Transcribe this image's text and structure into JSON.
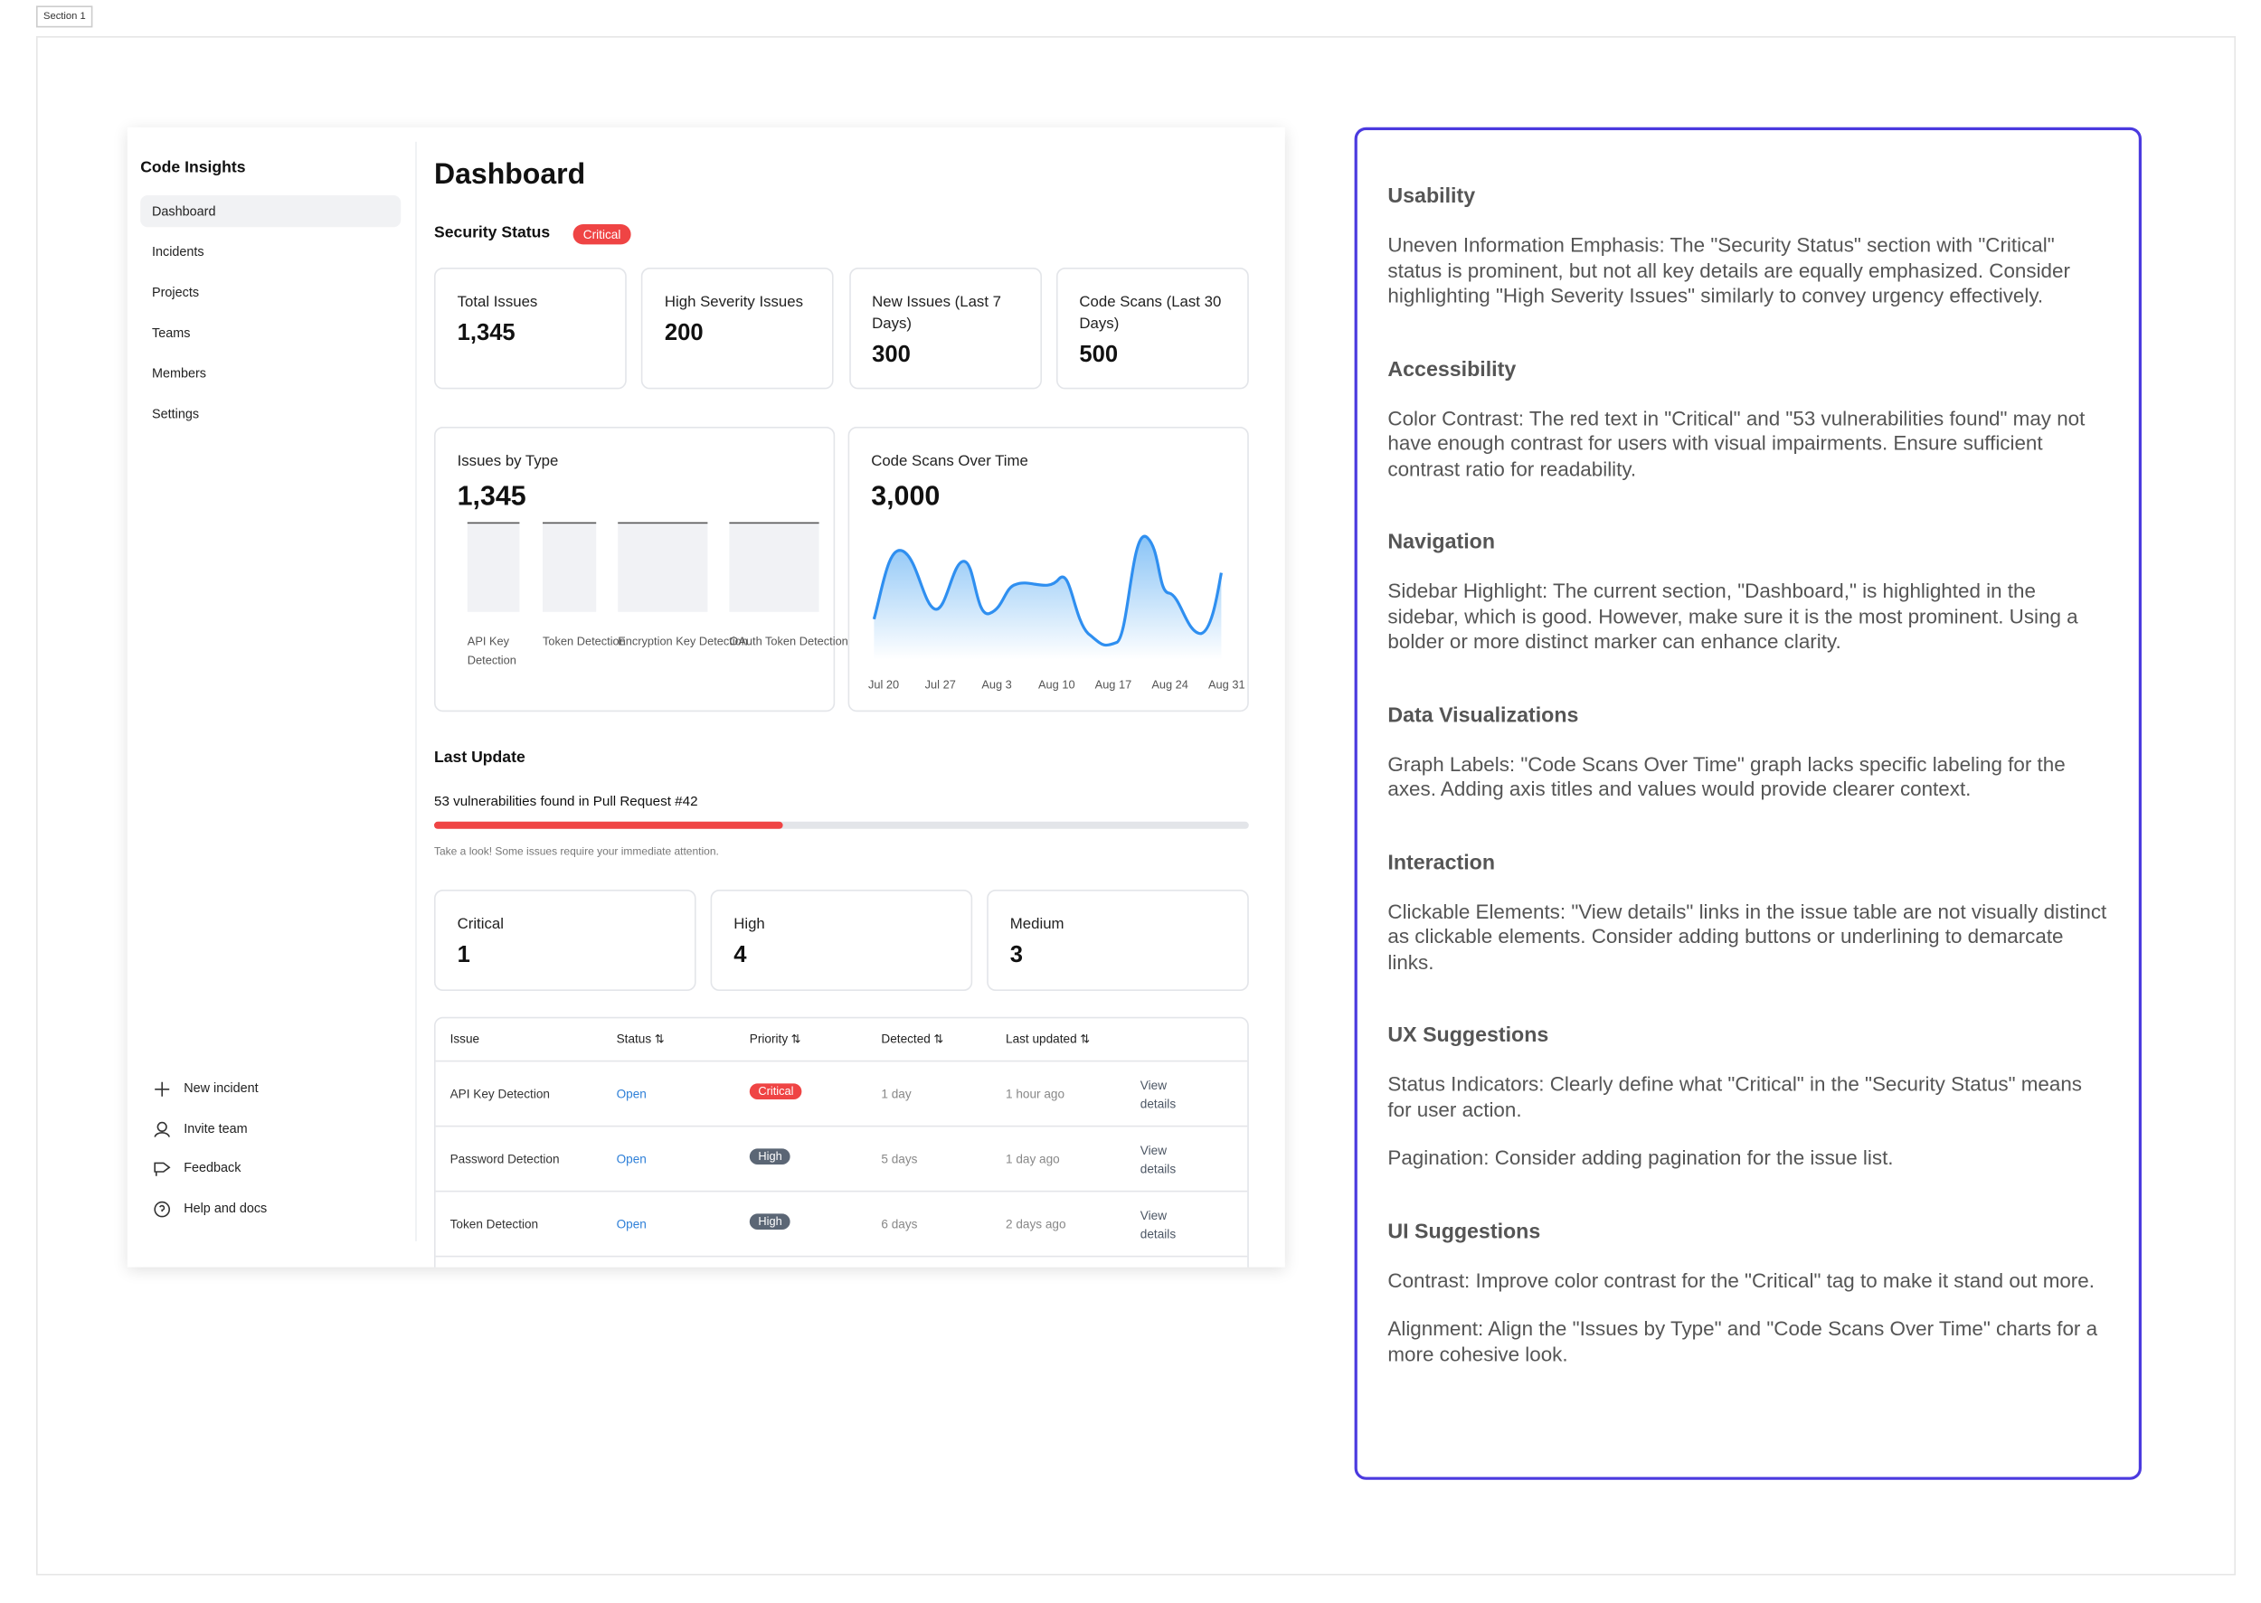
{
  "section_label": "Section 1",
  "sidebar": {
    "title": "Code Insights",
    "nav": [
      "Dashboard",
      "Incidents",
      "Projects",
      "Teams",
      "Members",
      "Settings"
    ],
    "footer": [
      "New incident",
      "Invite team",
      "Feedback",
      "Help and docs"
    ]
  },
  "main": {
    "title": "Dashboard",
    "security_status": {
      "label": "Security Status",
      "badge": "Critical"
    },
    "stats": [
      {
        "label": "Total Issues",
        "value": "1,345"
      },
      {
        "label": "High Severity Issues",
        "value": "200"
      },
      {
        "label": "New Issues (Last 7 Days)",
        "value": "300"
      },
      {
        "label": "Code Scans (Last 30 Days)",
        "value": "500"
      }
    ],
    "issues_by_type": {
      "title": "Issues by Type",
      "total": "1,345",
      "categories": [
        "API Key Detection",
        "Token Detection",
        "Encryption Key Detection",
        "OAuth Token Detection"
      ]
    },
    "code_scans": {
      "title": "Code Scans Over Time",
      "total": "3,000",
      "x_labels": [
        "Jul 20",
        "Jul 27",
        "Aug 3",
        "Aug 10",
        "Aug 17",
        "Aug 24",
        "Aug 31"
      ]
    },
    "last_update": {
      "title": "Last Update",
      "message": "53 vulnerabilities found in Pull Request #42",
      "note": "Take a look! Some issues require your immediate attention."
    },
    "severity": [
      {
        "label": "Critical",
        "value": 1
      },
      {
        "label": "High",
        "value": 4
      },
      {
        "label": "Medium",
        "value": 3
      }
    ],
    "table": {
      "headers": [
        "Issue",
        "Status",
        "Priority",
        "Detected",
        "Last updated"
      ],
      "rows": [
        [
          "API Key Detection",
          "Open",
          "Critical",
          "1 day",
          "1 hour ago",
          "View details"
        ],
        [
          "Password Detection",
          "Open",
          "High",
          "5 days",
          "1 day ago",
          "View details"
        ],
        [
          "Token Detection",
          "Open",
          "High",
          "6 days",
          "2 days ago",
          "View details"
        ]
      ]
    }
  },
  "review": [
    {
      "heading": "Usability",
      "paragraphs": [
        "Uneven Information Emphasis: The \"Security Status\" section with \"Critical\" status is prominent, but not all key details are equally emphasized. Consider highlighting \"High Severity Issues\" similarly to convey urgency effectively."
      ]
    },
    {
      "heading": "Accessibility",
      "paragraphs": [
        "Color Contrast: The red text in \"Critical\" and \"53 vulnerabilities found\" may not have enough contrast for users with visual impairments. Ensure sufficient contrast ratio for readability."
      ]
    },
    {
      "heading": "Navigation",
      "paragraphs": [
        "Sidebar Highlight: The current section, \"Dashboard,\" is highlighted in the sidebar, which is good. However, make sure it is the most prominent. Using a bolder or more distinct marker can enhance clarity."
      ]
    },
    {
      "heading": "Data Visualizations",
      "paragraphs": [
        "Graph Labels: \"Code Scans Over Time\" graph lacks specific labeling for the axes. Adding axis titles and values would provide clearer context."
      ]
    },
    {
      "heading": "Interaction",
      "paragraphs": [
        "Clickable Elements: \"View details\" links in the issue table are not visually distinct as clickable elements. Consider adding buttons or underlining to demarcate links."
      ]
    },
    {
      "heading": "UX Suggestions",
      "paragraphs": [
        "Status Indicators: Clearly define what \"Critical\" in the \"Security Status\" means for user action.",
        "Pagination: Consider adding pagination for the issue list."
      ]
    },
    {
      "heading": "UI Suggestions",
      "paragraphs": [
        "Contrast: Improve color contrast for the \"Critical\" tag to make it stand out more.",
        "Alignment: Align the \"Issues by Type\" and \"Code Scans Over Time\" charts for a more cohesive look."
      ]
    }
  ]
}
